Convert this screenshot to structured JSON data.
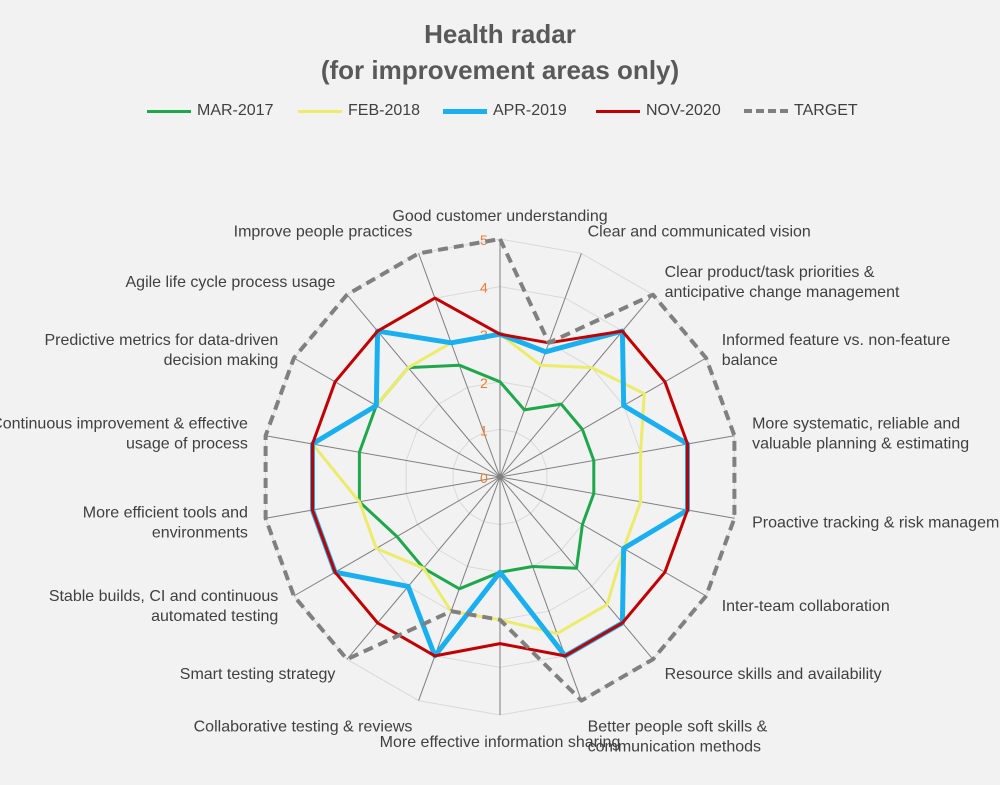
{
  "chart_data": {
    "type": "radar",
    "title": "Health radar",
    "subtitle": "(for improvement areas only)",
    "scale": {
      "min": 0,
      "max": 5,
      "ticks": [
        "0",
        "1",
        "2",
        "3",
        "4",
        "5"
      ]
    },
    "legend_position": "top",
    "categories": [
      "Good customer understanding",
      "Clear and communicated vision",
      "Clear product/task priorities & anticipative change management",
      "Informed feature vs. non-feature balance",
      "More systematic, reliable and valuable planning & estimating",
      "Proactive tracking & risk management",
      "Inter-team collaboration",
      "Resource skills and availability",
      "Better people soft skills & communication methods",
      "More effective information sharing",
      "Collaborative testing & reviews",
      "Smart testing strategy",
      "Stable builds, CI and continuous automated testing",
      "More efficient tools and environments",
      "Continuous improvement & effective usage of process",
      "Predictive metrics for data-driven decision making",
      "Agile life cycle process usage",
      "Improve people practices"
    ],
    "series": [
      {
        "name": "MAR-2017",
        "color": "#1ea84b",
        "dash": false,
        "width": 3,
        "values": [
          2.0,
          1.5,
          2.0,
          2.0,
          2.0,
          2.0,
          2.0,
          2.5,
          2.0,
          2.0,
          2.5,
          2.5,
          2.5,
          3.0,
          3.0,
          3.0,
          3.0,
          2.5
        ]
      },
      {
        "name": "FEB-2018",
        "color": "#ecec6a",
        "dash": false,
        "width": 3,
        "values": [
          3.0,
          2.5,
          3.0,
          3.5,
          3.0,
          3.0,
          3.0,
          3.5,
          3.5,
          3.0,
          3.0,
          2.5,
          3.0,
          3.0,
          4.0,
          3.0,
          3.0,
          3.0
        ]
      },
      {
        "name": "APR-2019",
        "color": "#1ab0f0",
        "dash": false,
        "width": 5,
        "values": [
          3.0,
          2.8,
          4.0,
          3.0,
          4.0,
          4.0,
          3.0,
          4.0,
          4.0,
          2.0,
          4.0,
          3.0,
          4.0,
          4.0,
          4.0,
          3.0,
          4.0,
          3.0
        ]
      },
      {
        "name": "NOV-2020",
        "color": "#c00000",
        "dash": false,
        "width": 3,
        "values": [
          3.0,
          3.0,
          4.0,
          4.0,
          4.0,
          4.0,
          4.0,
          4.0,
          4.0,
          3.5,
          4.0,
          4.0,
          4.0,
          4.0,
          4.0,
          4.0,
          4.0,
          4.0
        ]
      },
      {
        "name": "TARGET",
        "color": "#808080",
        "dash": true,
        "width": 4,
        "values": [
          5.0,
          3.0,
          5.0,
          5.0,
          5.0,
          5.0,
          5.0,
          5.0,
          5.0,
          3.0,
          3.0,
          5.0,
          5.0,
          5.0,
          5.0,
          5.0,
          5.0,
          5.0
        ]
      }
    ]
  }
}
